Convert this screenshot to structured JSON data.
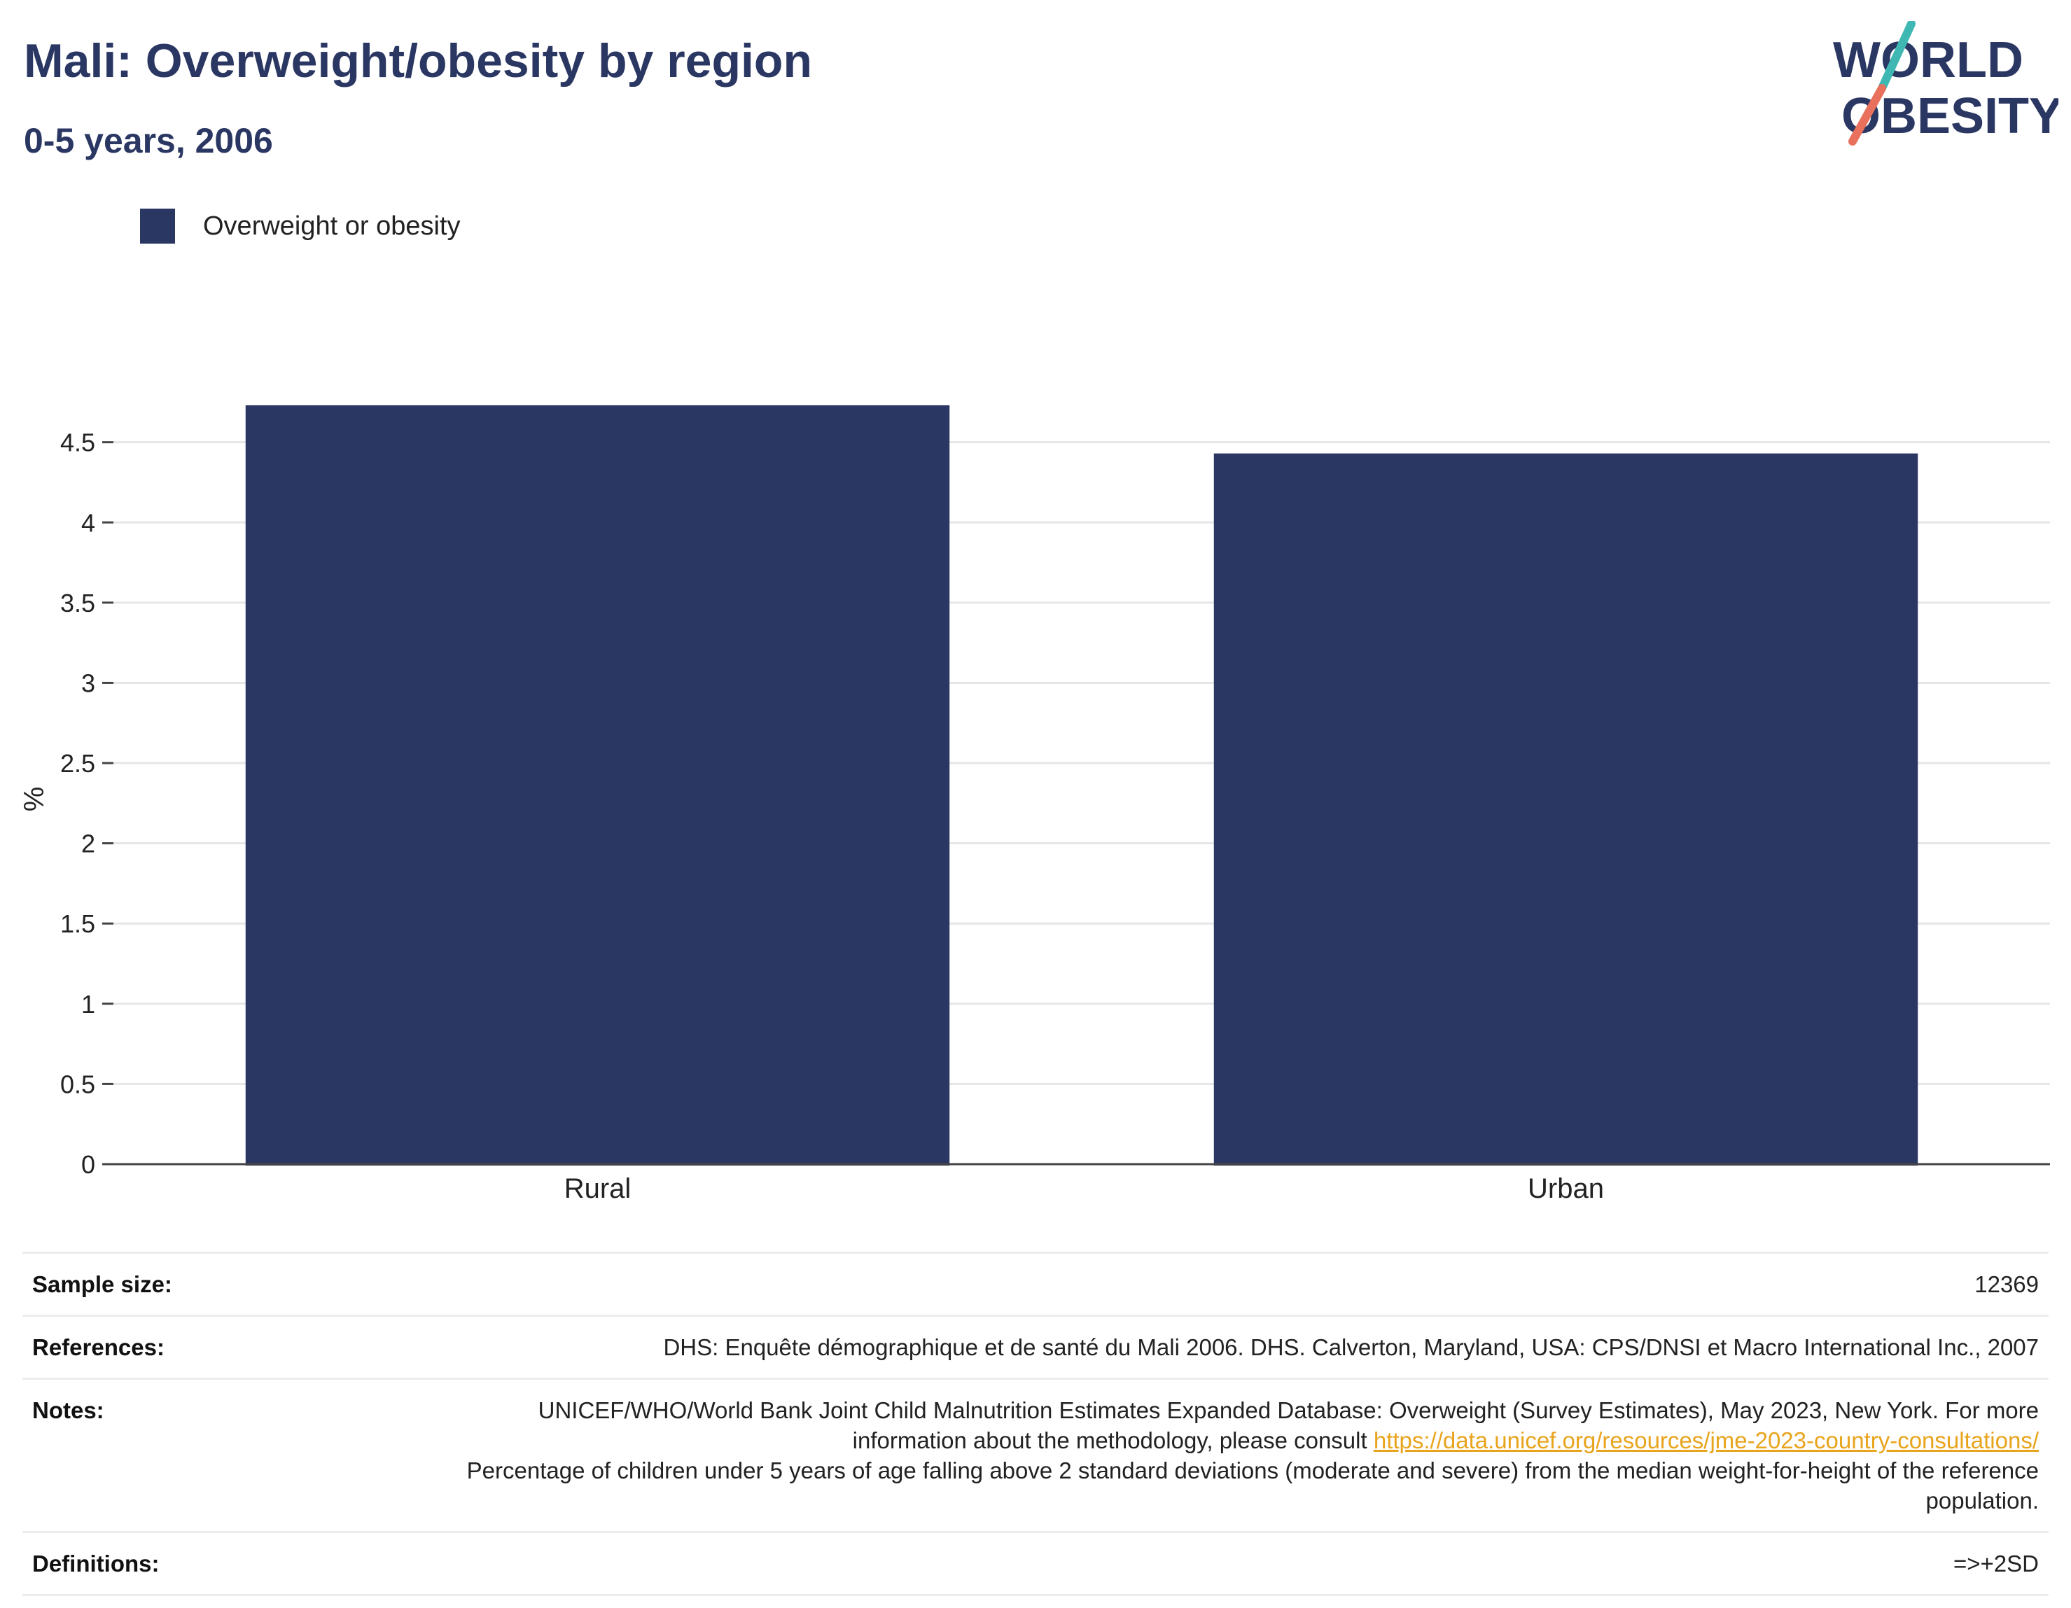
{
  "header": {
    "title": "Mali: Overweight/obesity by region",
    "subtitle": "0-5 years, 2006"
  },
  "logo": {
    "line1": "WORLD",
    "line2": "OBESITY"
  },
  "chart_data": {
    "type": "bar",
    "categories": [
      "Rural",
      "Urban"
    ],
    "series": [
      {
        "name": "Overweight or obesity",
        "values": [
          4.73,
          4.43
        ],
        "color": "#2b3763"
      }
    ],
    "xlabel": "",
    "ylabel": "%",
    "ylim": [
      0,
      4.9
    ],
    "yticks": [
      0,
      0.5,
      1,
      1.5,
      2,
      2.5,
      3,
      3.5,
      4,
      4.5
    ],
    "ytick_labels": [
      "0",
      "0.5",
      "1",
      "1.5",
      "2",
      "2.5",
      "3",
      "3.5",
      "4",
      "4.5"
    ],
    "grid": true,
    "legend_position": "top-left"
  },
  "info": {
    "sample_size_label": "Sample size:",
    "sample_size_value": "12369",
    "references_label": "References:",
    "references_value": "DHS: Enquête démographique et de santé du Mali 2006. DHS. Calverton, Maryland, USA: CPS/DNSI et Macro International Inc., 2007",
    "notes_label": "Notes:",
    "notes_text_before": "UNICEF/WHO/World Bank Joint Child Malnutrition Estimates Expanded Database: Overweight (Survey Estimates), May 2023, New York. For more information about the methodology, please consult ",
    "notes_link": "https://data.unicef.org/resources/jme-2023-country-consultations/",
    "notes_text_after": "Percentage of children under 5 years of age falling above 2 standard deviations (moderate and severe) from the median weight-for-height of the reference population.",
    "definitions_label": "Definitions:",
    "definitions_value": "=>+2SD"
  },
  "colors": {
    "brand": "#2b3763",
    "logo_teal": "#3fb8b4",
    "logo_coral": "#e8705c",
    "link": "#e8a41c"
  }
}
